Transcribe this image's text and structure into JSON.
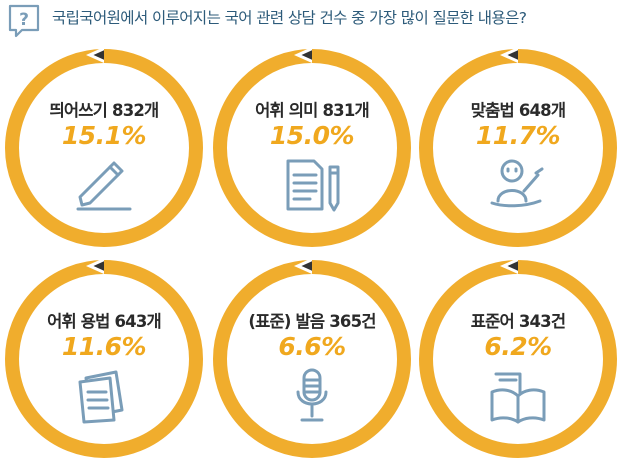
{
  "header": {
    "icon": "question-speech-bubble-icon",
    "title": "국립국어원에서 이루어지는 국어 관련 상담 건수 중 가장 많이 질문한 내용은?"
  },
  "colors": {
    "ring": "#f0ad2d",
    "percent_text": "#f0a81e",
    "icon": "#7a9db8",
    "title_text": "#2d5b7a",
    "label_text": "#2a2a2a"
  },
  "chart_data": {
    "type": "table",
    "title": "국립국어원에서 이루어지는 국어 관련 상담 건수 중 가장 많이 질문한 내용은?",
    "categories": [
      "띄어쓰기",
      "어휘 의미",
      "맞춤법",
      "어휘 용법",
      "(표준) 발음",
      "표준어"
    ],
    "counts": [
      832,
      831,
      648,
      643,
      365,
      343
    ],
    "percents": [
      15.1,
      15.0,
      11.7,
      11.6,
      6.6,
      6.2
    ],
    "items": [
      {
        "label": "띄어쓰기 832개",
        "percent": "15.1%",
        "icon": "pencil-writing-icon"
      },
      {
        "label": "어휘 의미 831개",
        "percent": "15.0%",
        "icon": "document-pencil-icon"
      },
      {
        "label": "맞춤법 648개",
        "percent": "11.7%",
        "icon": "person-writing-icon"
      },
      {
        "label": "어휘 용법 643개",
        "percent": "11.6%",
        "icon": "stacked-papers-icon"
      },
      {
        "label": "(표준) 발음 365건",
        "percent": "6.6%",
        "icon": "microphone-icon"
      },
      {
        "label": "표준어 343건",
        "percent": "6.2%",
        "icon": "open-book-icon"
      }
    ]
  }
}
